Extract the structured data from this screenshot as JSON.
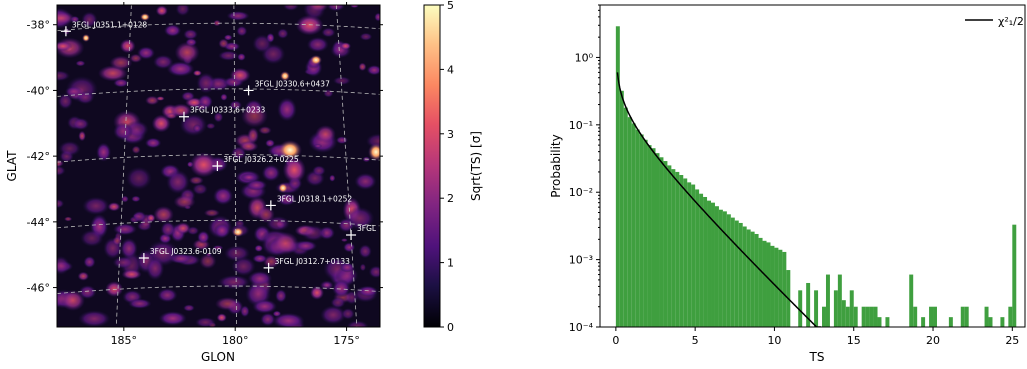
{
  "chart_data": [
    {
      "type": "heatmap",
      "xlabel": "GLON",
      "ylabel": "GLAT",
      "x_ticks": [
        "185°",
        "180°",
        "175°"
      ],
      "x_tick_values": [
        185,
        180,
        175
      ],
      "y_ticks": [
        "-38°",
        "-40°",
        "-42°",
        "-44°",
        "-46°"
      ],
      "y_tick_values": [
        -38,
        -40,
        -42,
        -44,
        -46
      ],
      "xlim": [
        188.0,
        173.5
      ],
      "ylim": [
        -47.2,
        -37.4
      ],
      "colorbar": {
        "label": "Sqrt(TS) [σ]",
        "ticks": [
          "0",
          "1",
          "2",
          "3",
          "4",
          "5"
        ],
        "range": [
          0,
          5
        ],
        "colormap": "magma"
      },
      "sources": [
        {
          "name": "3FGL J0351.1+0128",
          "glon": 187.6,
          "glat": -38.2
        },
        {
          "name": "3FGL J0330.6+0437",
          "glon": 179.4,
          "glat": -40.0
        },
        {
          "name": "3FGL J0333.6+0233",
          "glon": 182.3,
          "glat": -40.8
        },
        {
          "name": "3FGL J0326.2+0225",
          "glon": 180.8,
          "glat": -42.3
        },
        {
          "name": "3FGL J0318.1+0252",
          "glon": 178.4,
          "glat": -43.5
        },
        {
          "name": "3FGL J0323.6-0109",
          "glon": 184.1,
          "glat": -45.1
        },
        {
          "name": "3FGL J0312.7+0133",
          "glon": 178.5,
          "glat": -45.4
        },
        {
          "name": "3FGL",
          "glon": 174.8,
          "glat": -44.4
        }
      ]
    },
    {
      "type": "bar",
      "xlabel": "TS",
      "ylabel": "Probability",
      "yscale": "log",
      "xlim": [
        -1,
        25.8
      ],
      "ylim": [
        0.0001,
        6
      ],
      "x_ticks": [
        "0",
        "5",
        "10",
        "15",
        "20",
        "25"
      ],
      "x_tick_values": [
        0,
        5,
        10,
        15,
        20,
        25
      ],
      "y_ticks": [
        "10⁻⁴",
        "10⁻³",
        "10⁻²",
        "10⁻¹",
        "10⁰"
      ],
      "y_tick_values": [
        0.0001,
        0.001,
        0.01,
        0.1,
        1
      ],
      "bar_color": "#3f9f3f",
      "bin_width": 0.25,
      "bin_start": 0,
      "histogram_values": [
        2.9,
        0.32,
        0.18,
        0.13,
        0.105,
        0.085,
        0.072,
        0.06,
        0.05,
        0.045,
        0.038,
        0.033,
        0.029,
        0.025,
        0.022,
        0.02,
        0.018,
        0.016,
        0.014,
        0.013,
        0.011,
        0.0095,
        0.0085,
        0.0075,
        0.007,
        0.0062,
        0.0055,
        0.0052,
        0.0047,
        0.0042,
        0.0038,
        0.0035,
        0.0031,
        0.0028,
        0.0026,
        0.0024,
        0.0021,
        0.0019,
        0.0018,
        0.0016,
        0.0015,
        0.0014,
        0.0013,
        0.0012,
        0.0011,
        0.0015,
        0.0009,
        0.0013,
        0.00085,
        0.0012,
        0.0006,
        0.0012,
        0.0006,
        0.0008,
        0.00045,
        0.001,
        0.0004,
        0.00065,
        0.0003,
        0.0008,
        0.0004,
        0.00045,
        0.0006,
        0.0003,
        0.00075,
        0.0002,
        0.0004,
        0.0006,
        0.00035,
        0.0002,
        0.0002,
        0.0004,
        0.00022,
        0.0003,
        0.0003,
        0.0002,
        0.0003,
        0.0001,
        0.0002,
        0.0001,
        0.0001,
        0.0001,
        0.0001,
        0.0001,
        0.0001,
        0.0001,
        0.0001,
        0.0001,
        0.0001,
        0.0001,
        0.0001,
        0.0001,
        0.0001,
        0.0001,
        0.0001,
        0.0001,
        0.0001,
        0.0001,
        0.0001,
        0.0001
      ],
      "sparse_bars": [
        {
          "x": 10.75,
          "y": 0.0007
        },
        {
          "x": 11.5,
          "y": 0.00035
        },
        {
          "x": 12.0,
          "y": 0.00045
        },
        {
          "x": 12.5,
          "y": 0.00035
        },
        {
          "x": 13.0,
          "y": 0.0002
        },
        {
          "x": 13.25,
          "y": 0.0006
        },
        {
          "x": 13.75,
          "y": 0.00035
        },
        {
          "x": 14.0,
          "y": 0.0006
        },
        {
          "x": 14.25,
          "y": 0.00025
        },
        {
          "x": 14.5,
          "y": 0.0002
        },
        {
          "x": 14.75,
          "y": 0.00035
        },
        {
          "x": 15.0,
          "y": 0.0002
        },
        {
          "x": 15.5,
          "y": 0.0002
        },
        {
          "x": 15.75,
          "y": 0.0002
        },
        {
          "x": 16.0,
          "y": 0.0002
        },
        {
          "x": 16.25,
          "y": 0.0002
        },
        {
          "x": 16.5,
          "y": 0.00014
        },
        {
          "x": 17.0,
          "y": 0.00014
        },
        {
          "x": 18.5,
          "y": 0.0006
        },
        {
          "x": 18.75,
          "y": 0.0002
        },
        {
          "x": 19.25,
          "y": 0.00014
        },
        {
          "x": 19.75,
          "y": 0.0002
        },
        {
          "x": 20.0,
          "y": 0.0002
        },
        {
          "x": 21.0,
          "y": 0.00014
        },
        {
          "x": 21.75,
          "y": 0.0002
        },
        {
          "x": 22.0,
          "y": 0.0002
        },
        {
          "x": 23.25,
          "y": 0.0002
        },
        {
          "x": 23.5,
          "y": 0.00014
        },
        {
          "x": 24.25,
          "y": 0.00014
        },
        {
          "x": 24.75,
          "y": 0.0002
        },
        {
          "x": 25.0,
          "y": 0.0033
        }
      ],
      "curve": {
        "name": "χ²₁/2",
        "color": "#000000",
        "x_start": 0.1,
        "x_end": 13.0
      },
      "legend": {
        "label": "χ²₁/2",
        "position": "top-right"
      }
    }
  ]
}
